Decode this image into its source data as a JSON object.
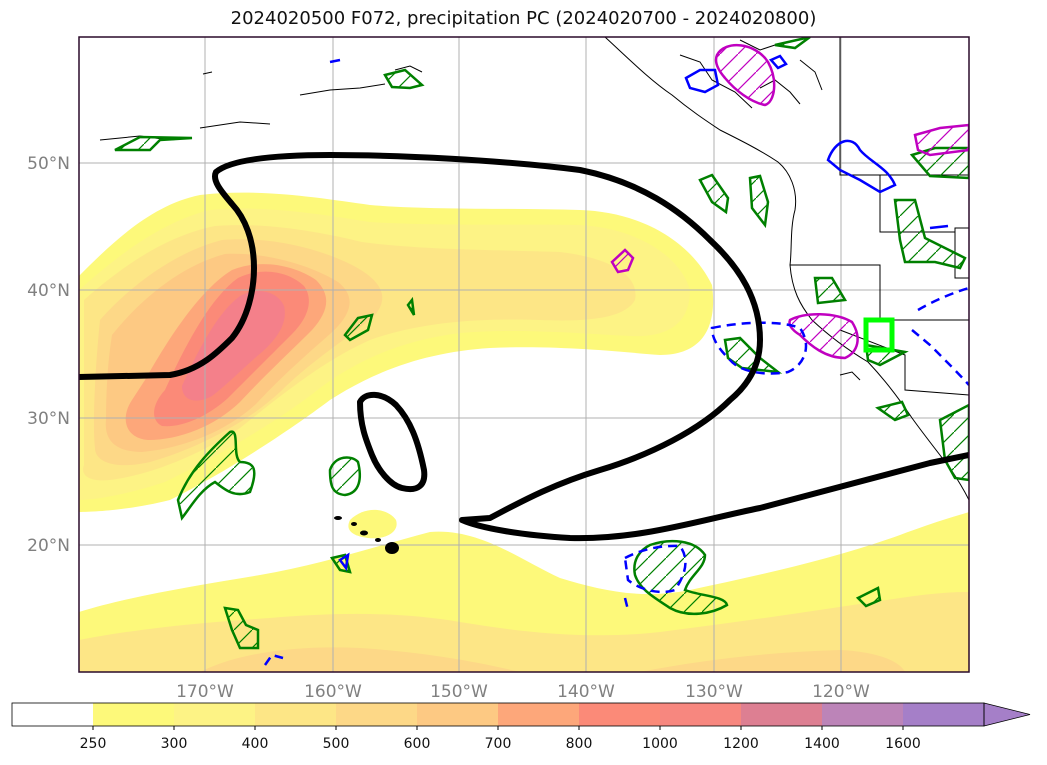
{
  "title": "2024020500 F072, precipitation PC (2024020700 - 2024020800)",
  "map": {
    "lat_labels": [
      "50°N",
      "40°N",
      "30°N",
      "20°N"
    ],
    "lon_labels": [
      "170°W",
      "160°W",
      "150°W",
      "140°W",
      "130°W",
      "120°W"
    ]
  },
  "colorbar": {
    "ticks": [
      "250",
      "300",
      "400",
      "500",
      "600",
      "700",
      "800",
      "1000",
      "1200",
      "1400",
      "1600"
    ],
    "colors": [
      "#ffffff",
      "#fdf97a",
      "#fdf385",
      "#fde686",
      "#fdd887",
      "#fdc983",
      "#fda77a",
      "#fb8a78",
      "#f7877f",
      "#dd7f92",
      "#bc84b8",
      "#a57fc8"
    ],
    "extend": "max"
  },
  "colors": {
    "contour_black": "#000000",
    "contour_green": "#008000",
    "contour_blue": "#0000ff",
    "contour_magenta": "#c000c0",
    "highlight_green": "#00ff00",
    "grid": "#b0b0b0",
    "frame": "#2a0a2a"
  }
}
